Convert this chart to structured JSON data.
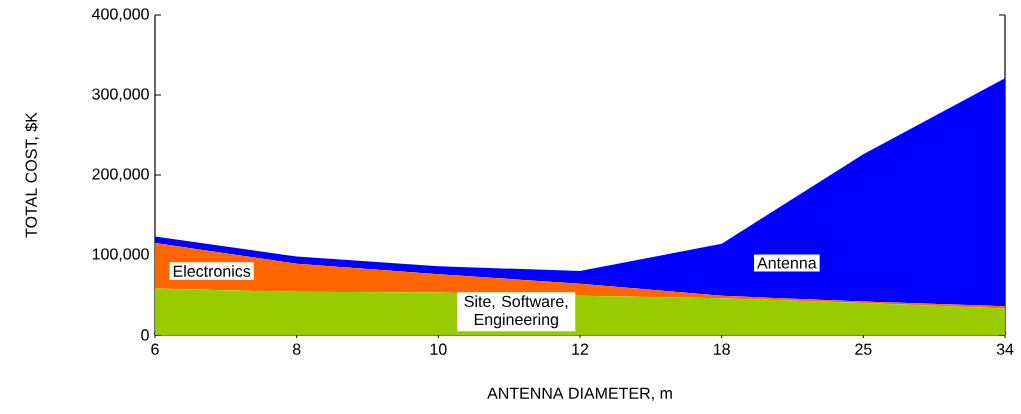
{
  "chart_data": {
    "type": "area",
    "stacked": true,
    "xlabel": "ANTENNA DIAMETER, m",
    "ylabel": "TOTAL COST, $K",
    "categories": [
      "6",
      "8",
      "10",
      "12",
      "18",
      "25",
      "34"
    ],
    "series": [
      {
        "name": "Site, Software, Engineering",
        "color": "#99cc00",
        "values": [
          58000,
          54000,
          53000,
          49000,
          46000,
          40000,
          33000
        ]
      },
      {
        "name": "Electronics",
        "color": "#ff6600",
        "values": [
          57000,
          35000,
          23000,
          15000,
          3000,
          2000,
          3000
        ]
      },
      {
        "name": "Antenna",
        "color": "#0000ff",
        "values": [
          8000,
          9000,
          10000,
          16000,
          65000,
          184000,
          285000
        ]
      }
    ],
    "ylim": [
      0,
      400000
    ],
    "yticks": [
      0,
      {
        "value": 100000,
        "label": "100,000"
      },
      {
        "value": 200000,
        "label": "200,000"
      },
      {
        "value": 300000,
        "label": "300,000"
      },
      {
        "value": 400000,
        "label": "400,000"
      }
    ]
  }
}
